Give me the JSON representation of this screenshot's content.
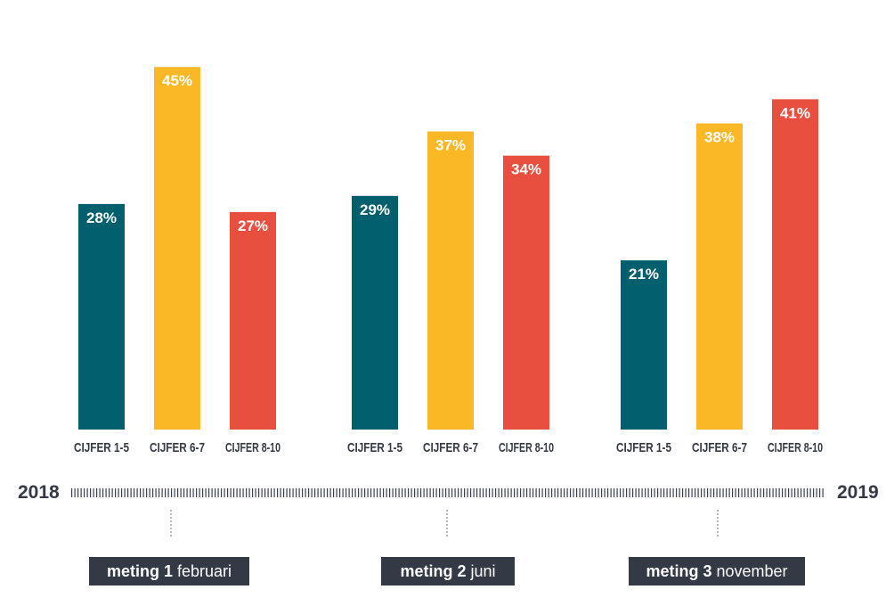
{
  "chart_data": {
    "type": "bar",
    "groups": [
      {
        "name": "meting 1",
        "period": "februari"
      },
      {
        "name": "meting 2",
        "period": "juni"
      },
      {
        "name": "meting 3",
        "period": "november"
      }
    ],
    "categories": [
      "CIJFER 1-5",
      "CIJFER 6-7",
      "CIJFER 8-10"
    ],
    "series": [
      {
        "values": [
          28,
          45,
          27
        ],
        "labels": [
          "28%",
          "45%",
          "27%"
        ]
      },
      {
        "values": [
          29,
          37,
          34
        ],
        "labels": [
          "29%",
          "37%",
          "34%"
        ]
      },
      {
        "values": [
          21,
          38,
          41
        ],
        "labels": [
          "21%",
          "38%",
          "41%"
        ]
      }
    ],
    "unit": "%",
    "colors": [
      "#015f6e",
      "#fbb826",
      "#e94f3f"
    ],
    "timeline": {
      "start": "2018",
      "end": "2019"
    },
    "grid": false,
    "legend": "none"
  }
}
